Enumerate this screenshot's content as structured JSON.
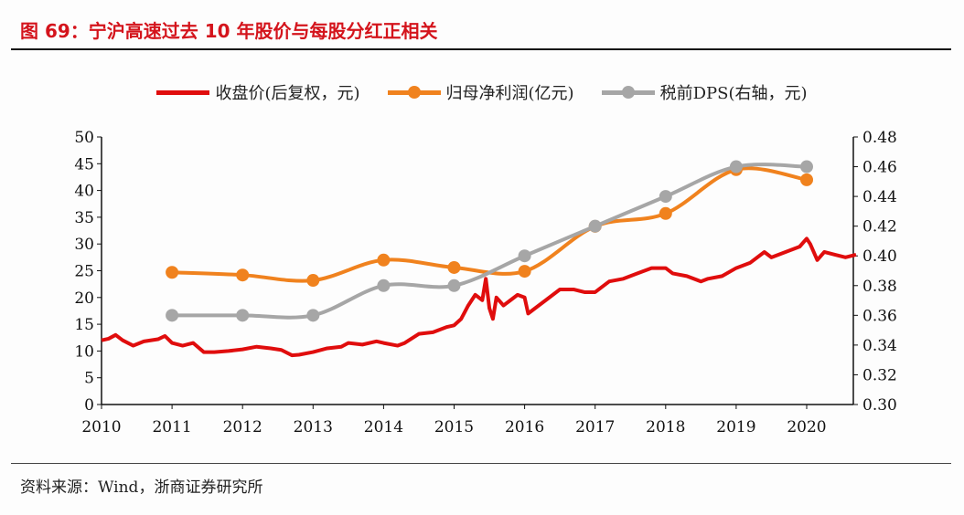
{
  "title": "图 69：宁沪高速过去 10 年股价与每股分红正相关",
  "source": "资料来源：Wind，浙商证券研究所",
  "chart_data": {
    "type": "line",
    "title": "图 69：宁沪高速过去 10 年股价与每股分红正相关",
    "legend_position": "top",
    "grid": false,
    "x_ticks": [
      "2010",
      "2011",
      "2012",
      "2013",
      "2014",
      "2015",
      "2016",
      "2017",
      "2018",
      "2019",
      "2020"
    ],
    "xlim": [
      2010,
      2020.7
    ],
    "y_left": {
      "ylim": [
        0,
        50
      ],
      "ticks": [
        "0",
        "5",
        "10",
        "15",
        "20",
        "25",
        "30",
        "35",
        "40",
        "45",
        "50"
      ]
    },
    "y_right": {
      "ylim": [
        0.3,
        0.48
      ],
      "ticks": [
        "0.30",
        "0.32",
        "0.34",
        "0.36",
        "0.38",
        "0.40",
        "0.42",
        "0.44",
        "0.46",
        "0.48"
      ]
    },
    "series": [
      {
        "name": "收盘价(后复权，元)",
        "axis": "left",
        "color": "#e00d0d",
        "marker": false,
        "x": [
          2010,
          2010.1,
          2010.2,
          2010.3,
          2010.45,
          2010.6,
          2010.8,
          2010.9,
          2011,
          2011.15,
          2011.3,
          2011.45,
          2011.6,
          2011.8,
          2012,
          2012.2,
          2012.4,
          2012.55,
          2012.7,
          2012.8,
          2013,
          2013.2,
          2013.4,
          2013.5,
          2013.7,
          2013.9,
          2014,
          2014.2,
          2014.3,
          2014.5,
          2014.7,
          2014.9,
          2015,
          2015.1,
          2015.2,
          2015.3,
          2015.4,
          2015.45,
          2015.5,
          2015.55,
          2015.6,
          2015.7,
          2015.8,
          2015.9,
          2016,
          2016.05,
          2016.15,
          2016.3,
          2016.5,
          2016.7,
          2016.85,
          2017,
          2017.2,
          2017.4,
          2017.6,
          2017.8,
          2018,
          2018.1,
          2018.3,
          2018.5,
          2018.6,
          2018.8,
          2019,
          2019.2,
          2019.4,
          2019.5,
          2019.7,
          2019.9,
          2020,
          2020.05,
          2020.15,
          2020.25,
          2020.4,
          2020.55,
          2020.7
        ],
        "values": [
          12,
          12.3,
          13,
          12,
          11,
          11.8,
          12.2,
          12.8,
          11.5,
          11,
          11.5,
          9.8,
          9.8,
          10,
          10.3,
          10.8,
          10.5,
          10.2,
          9.2,
          9.3,
          9.8,
          10.5,
          10.8,
          11.5,
          11.2,
          11.8,
          11.5,
          11,
          11.5,
          13.2,
          13.5,
          14.5,
          14.8,
          16,
          18.5,
          20.5,
          19.5,
          23.5,
          18,
          16,
          20,
          18.5,
          19.5,
          20.5,
          20,
          17,
          18,
          19.5,
          21.5,
          21.5,
          21,
          21,
          23,
          23.5,
          24.5,
          25.5,
          25.5,
          24.5,
          24,
          23,
          23.5,
          24,
          25.5,
          26.5,
          28.5,
          27.5,
          28.5,
          29.5,
          31,
          30,
          27,
          28.5,
          28,
          27.5,
          28
        ]
      },
      {
        "name": "归母净利润(亿元)",
        "axis": "left",
        "color": "#f0821e",
        "marker": true,
        "x": [
          2011,
          2012,
          2013,
          2014,
          2015,
          2016,
          2017,
          2018,
          2019,
          2020
        ],
        "values": [
          24.7,
          24.2,
          23.2,
          27.0,
          25.6,
          24.9,
          33.3,
          35.7,
          43.9,
          42.0
        ]
      },
      {
        "name": "税前DPS(右轴，元)",
        "axis": "right",
        "color": "#a6a6a6",
        "marker": true,
        "x": [
          2011,
          2012,
          2013,
          2014,
          2015,
          2016,
          2017,
          2018,
          2019,
          2020
        ],
        "values": [
          0.36,
          0.36,
          0.36,
          0.38,
          0.38,
          0.4,
          0.42,
          0.44,
          0.46,
          0.46
        ]
      }
    ]
  }
}
